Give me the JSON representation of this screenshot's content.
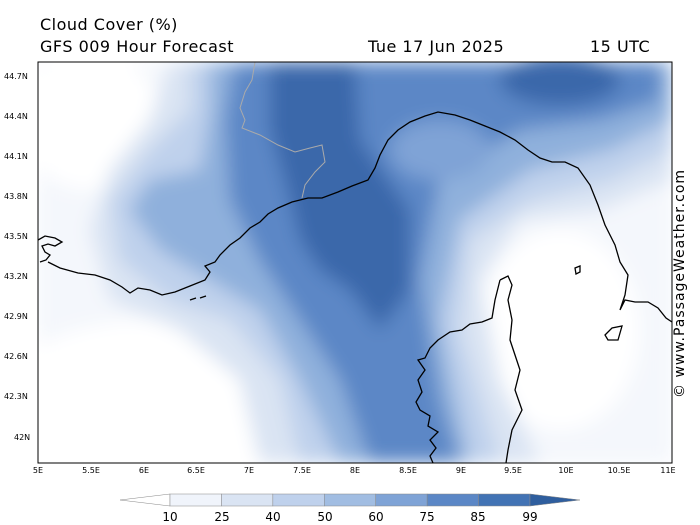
{
  "header": {
    "title": "Cloud Cover (%)",
    "subtitle": "GFS 009 Hour Forecast",
    "date": "Tue 17 Jun 2025",
    "time": "15 UTC"
  },
  "map": {
    "lon_range": [
      5,
      11
    ],
    "lat_range": [
      41.8,
      44.8
    ],
    "lat_ticks": [
      "44.7N",
      "44.4N",
      "44.1N",
      "43.8N",
      "43.5N",
      "43.2N",
      "42.9N",
      "42.6N",
      "42.3N",
      "42N"
    ],
    "lon_ticks": [
      "5E",
      "5.5E",
      "6E",
      "6.5E",
      "7E",
      "7.5E",
      "8E",
      "8.5E",
      "9E",
      "9.5E",
      "10E",
      "10.5E",
      "11E"
    ]
  },
  "colorbar": {
    "labels": [
      "10",
      "25",
      "40",
      "50",
      "60",
      "75",
      "85",
      "99"
    ],
    "colors": [
      "#ffffff",
      "#f0f4fb",
      "#dae4f3",
      "#bfd1ec",
      "#a1bde2",
      "#7fa3d6",
      "#5b87c6",
      "#4273b4",
      "#2f5e9e"
    ]
  },
  "watermark": "© www.PassageWeather.com"
}
